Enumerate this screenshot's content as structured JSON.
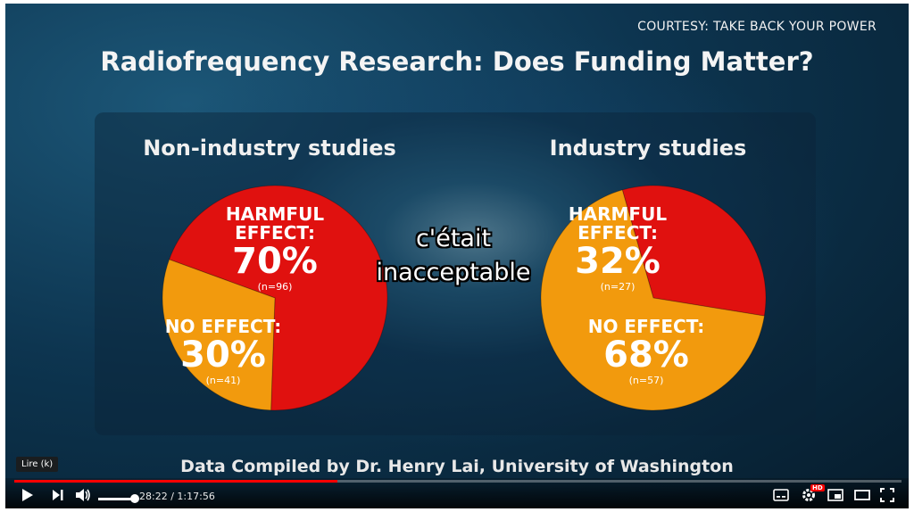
{
  "video": {
    "courtesy": "COURTESY: TAKE BACK YOUR POWER",
    "title": "Radiofrequency Research: Does Funding Matter?",
    "subtitle_line1": "c'était",
    "subtitle_line2": "inacceptable",
    "credit": "Data Compiled by Dr. Henry Lai, University of Washington"
  },
  "chart_data": [
    {
      "type": "pie",
      "title": "Non-industry studies",
      "slices": [
        {
          "label": "HARMFUL EFFECT:",
          "value": 70,
          "pct_label": "70%",
          "n_label": "(n=96)",
          "color": "#e0110f"
        },
        {
          "label": "NO EFFECT:",
          "value": 30,
          "pct_label": "30%",
          "n_label": "(n=41)",
          "color": "#f29a0d"
        }
      ]
    },
    {
      "type": "pie",
      "title": "Industry studies",
      "slices": [
        {
          "label": "HARMFUL EFFECT:",
          "value": 32,
          "pct_label": "32%",
          "n_label": "(n=27)",
          "color": "#e0110f"
        },
        {
          "label": "NO EFFECT:",
          "value": 68,
          "pct_label": "68%",
          "n_label": "(n=57)",
          "color": "#f29a0d"
        }
      ]
    }
  ],
  "player": {
    "tooltip": "Lire (k)",
    "current_time": "28:22",
    "separator": " / ",
    "duration": "1:17:56",
    "played_fraction": 0.364,
    "icons": [
      "play-icon",
      "next-icon",
      "volume-icon",
      "subtitles-icon",
      "settings-icon",
      "miniplayer-icon",
      "theater-icon",
      "fullscreen-icon"
    ],
    "hd_badge": "HD",
    "accent": "#ff0000"
  }
}
